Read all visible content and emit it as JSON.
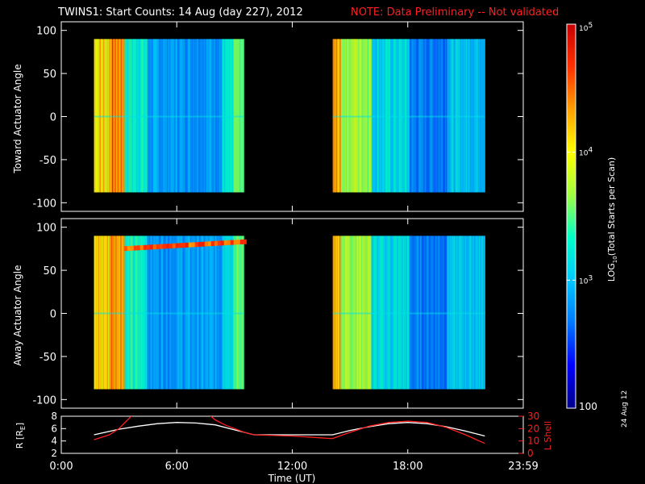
{
  "chart_data": [
    {
      "type": "heatmap",
      "panel": "toward",
      "ylabel": "Toward Actuator Angle",
      "ylim": [
        -110,
        110
      ],
      "yticks": [
        100,
        50,
        0,
        -50,
        -100
      ],
      "y_range": [
        -88,
        90
      ],
      "scans": [
        {
          "start_hour": 1.7,
          "end_hour": 9.5
        },
        {
          "start_hour": 14.1,
          "end_hour": 22.0
        }
      ]
    },
    {
      "type": "heatmap",
      "panel": "away",
      "ylabel": "Away Actuator Angle",
      "ylim": [
        -110,
        110
      ],
      "yticks": [
        100,
        50,
        0,
        -50,
        -100
      ],
      "y_range": [
        -88,
        90
      ],
      "scans": [
        {
          "start_hour": 1.7,
          "end_hour": 9.5
        },
        {
          "start_hour": 14.1,
          "end_hour": 22.0
        }
      ]
    },
    {
      "type": "line",
      "panel": "orbit",
      "ylabel_left": "R [R",
      "ylabel_left_sub": "E",
      "ylabel_left_end": "]",
      "ylabel_right": "L Shell",
      "ylim_left": [
        2,
        8
      ],
      "ylim_right": [
        0,
        30
      ],
      "yticks_left": [
        2,
        4,
        6,
        8
      ],
      "yticks_right": [
        0,
        10,
        20,
        30
      ],
      "series": [
        {
          "axis": "left",
          "color": "#ffffff",
          "x": [
            1.7,
            3,
            4,
            5,
            6,
            7,
            8,
            9,
            9.5,
            10,
            12,
            14,
            14.1,
            15,
            16,
            17,
            18,
            19,
            20,
            21,
            22
          ],
          "y": [
            5.0,
            5.9,
            6.4,
            6.8,
            7.0,
            6.9,
            6.6,
            5.8,
            5.4,
            5.0,
            5.0,
            5.0,
            5.0,
            5.7,
            6.3,
            6.8,
            7.0,
            6.8,
            6.3,
            5.6,
            4.8
          ]
        },
        {
          "axis": "right",
          "color": "#ff2020",
          "x": [
            1.7,
            2.5,
            3,
            3.7,
            7.7,
            8,
            8.5,
            9,
            9.5,
            10,
            12,
            14,
            14.1,
            15,
            16,
            17,
            18,
            19,
            20,
            21,
            22
          ],
          "y": [
            11,
            15,
            20,
            31,
            31,
            27,
            23,
            20,
            17,
            15,
            14,
            12,
            12,
            17,
            22,
            25,
            26,
            25,
            21,
            15,
            8
          ]
        }
      ]
    }
  ],
  "header": {
    "title": "TWINS1: Start Counts: 14 Aug (day 227), 2012",
    "note": "NOTE: Data Preliminary -- Not validated"
  },
  "time_axis": {
    "label": "Time (UT)",
    "xlim": [
      0,
      24
    ],
    "ticks": [
      {
        "h": 0,
        "label": "0:00"
      },
      {
        "h": 6,
        "label": "6:00"
      },
      {
        "h": 12,
        "label": "12:00"
      },
      {
        "h": 18,
        "label": "18:00"
      },
      {
        "h": 24,
        "label": "23:59"
      }
    ]
  },
  "colorbar": {
    "label": "LOG",
    "label_sub": "10",
    "label_rest": "(Total Starts per Scan)",
    "scale": "log",
    "range": [
      100,
      100000
    ],
    "ticks": [
      {
        "v": 100000,
        "base": "10",
        "exp": "5"
      },
      {
        "v": 10000,
        "base": "10",
        "exp": "4"
      },
      {
        "v": 1000,
        "base": "10",
        "exp": "3"
      },
      {
        "v": 100,
        "base": "100",
        "exp": ""
      }
    ],
    "colors": [
      "#00008a",
      "#0000ff",
      "#0078ff",
      "#00c8ff",
      "#00ffc8",
      "#a0ff40",
      "#ffff00",
      "#ffa000",
      "#ff3000",
      "#c80000"
    ]
  },
  "stamp": "24 Aug 12"
}
